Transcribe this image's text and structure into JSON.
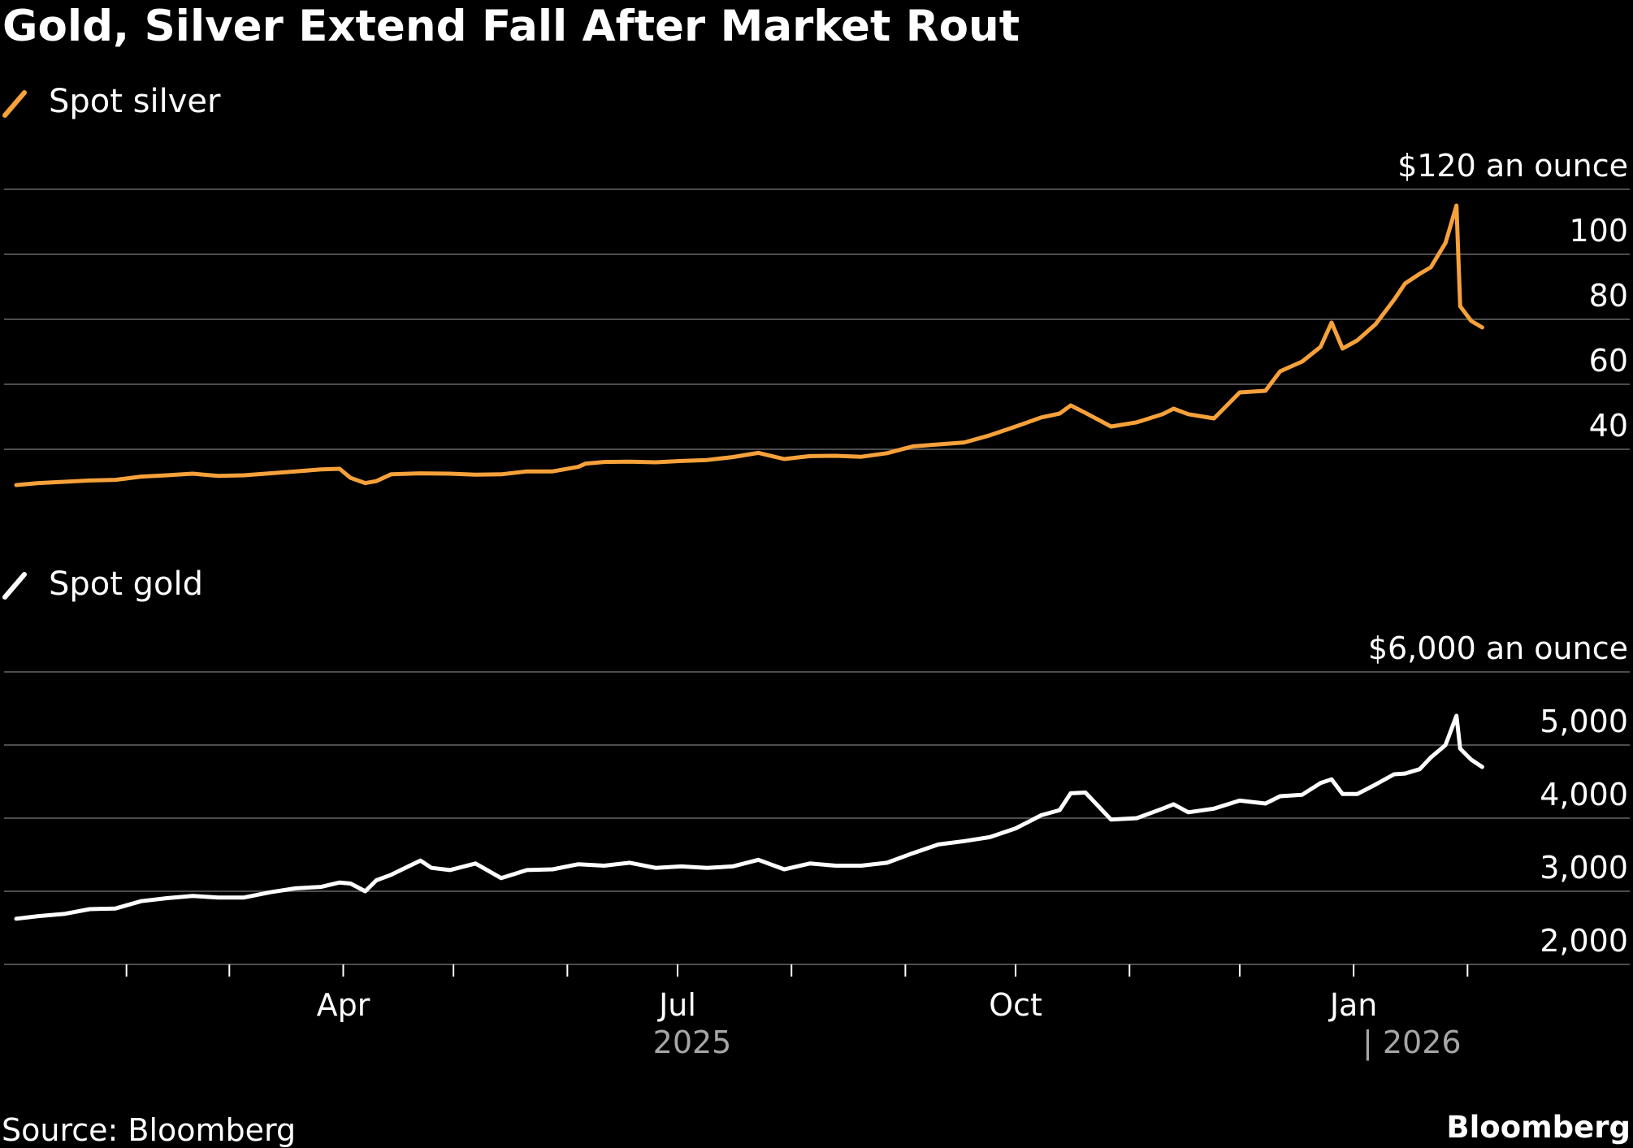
{
  "title": "Gold, Silver Extend Fall After Market Rout",
  "source": "Source: Bloomberg",
  "brand": "Bloomberg",
  "colors": {
    "background": "#000000",
    "silver_line": "#f7a13a",
    "gold_line": "#ffffff",
    "grid": "#4d4d4d",
    "muted_text": "#a6a6a6"
  },
  "x_axis": {
    "tick_labels": [
      "Apr",
      "Jul",
      "Oct",
      "Jan"
    ],
    "year_labels": [
      "2025",
      "| 2026"
    ]
  },
  "chart_data": [
    {
      "type": "line",
      "legend": "Spot silver",
      "y_unit_label": "$120 an ounce",
      "y_ticks": [
        "$120 an ounce",
        "100",
        "80",
        "60",
        "40"
      ],
      "y_tick_values": [
        120,
        100,
        80,
        60,
        40
      ],
      "ylim": [
        20,
        120
      ],
      "xlim": [
        "2025-01-02",
        "2026-02-10"
      ],
      "grid": true,
      "series": [
        {
          "x": [
            "2025-01-02",
            "2025-01-08",
            "2025-01-15",
            "2025-01-22",
            "2025-01-29",
            "2025-02-05",
            "2025-02-12",
            "2025-02-19",
            "2025-02-26",
            "2025-03-05",
            "2025-03-12",
            "2025-03-19",
            "2025-03-26",
            "2025-03-31",
            "2025-04-03",
            "2025-04-07",
            "2025-04-10",
            "2025-04-14",
            "2025-04-22",
            "2025-04-30",
            "2025-05-07",
            "2025-05-14",
            "2025-05-21",
            "2025-05-28",
            "2025-06-04",
            "2025-06-06",
            "2025-06-11",
            "2025-06-18",
            "2025-06-25",
            "2025-07-02",
            "2025-07-09",
            "2025-07-16",
            "2025-07-23",
            "2025-07-30",
            "2025-08-06",
            "2025-08-13",
            "2025-08-20",
            "2025-08-27",
            "2025-09-03",
            "2025-09-10",
            "2025-09-17",
            "2025-09-24",
            "2025-10-01",
            "2025-10-08",
            "2025-10-13",
            "2025-10-16",
            "2025-10-20",
            "2025-10-27",
            "2025-11-03",
            "2025-11-10",
            "2025-11-13",
            "2025-11-17",
            "2025-11-24",
            "2025-12-01",
            "2025-12-08",
            "2025-12-12",
            "2025-12-18",
            "2025-12-23",
            "2025-12-26",
            "2025-12-29",
            "2026-01-02",
            "2026-01-07",
            "2026-01-12",
            "2026-01-15",
            "2026-01-19",
            "2026-01-22",
            "2026-01-26",
            "2026-01-29",
            "2026-01-30",
            "2026-02-02",
            "2026-02-05"
          ],
          "values": [
            29.0,
            29.6,
            30.0,
            30.4,
            30.6,
            31.6,
            32.0,
            32.5,
            31.8,
            32.0,
            32.6,
            33.2,
            33.8,
            34.0,
            31.2,
            29.6,
            30.2,
            32.3,
            32.6,
            32.5,
            32.2,
            32.3,
            33.2,
            33.2,
            34.6,
            35.6,
            36.1,
            36.2,
            36.0,
            36.4,
            36.7,
            37.6,
            38.9,
            37.0,
            37.9,
            38.0,
            37.7,
            38.8,
            40.9,
            41.5,
            42.1,
            44.3,
            47.0,
            49.8,
            51.0,
            53.5,
            51.2,
            47.0,
            48.3,
            50.8,
            52.5,
            50.8,
            49.5,
            57.5,
            58.0,
            64.0,
            67.0,
            71.5,
            79.0,
            71.0,
            73.5,
            78.5,
            86.0,
            91.0,
            94.0,
            96.0,
            103.5,
            115.0,
            84.0,
            79.5,
            77.5
          ]
        }
      ]
    },
    {
      "type": "line",
      "legend": "Spot gold",
      "y_unit_label": "$6,000 an ounce",
      "y_ticks": [
        "$6,000 an ounce",
        "5,000",
        "4,000",
        "3,000",
        "2,000"
      ],
      "y_tick_values": [
        6000,
        5000,
        4000,
        3000,
        2000
      ],
      "ylim": [
        2000,
        6000
      ],
      "xlim": [
        "2025-01-02",
        "2026-02-10"
      ],
      "grid": true,
      "series": [
        {
          "x": [
            "2025-01-02",
            "2025-01-08",
            "2025-01-15",
            "2025-01-22",
            "2025-01-29",
            "2025-02-05",
            "2025-02-12",
            "2025-02-19",
            "2025-02-26",
            "2025-03-05",
            "2025-03-12",
            "2025-03-19",
            "2025-03-26",
            "2025-03-31",
            "2025-04-03",
            "2025-04-07",
            "2025-04-10",
            "2025-04-14",
            "2025-04-22",
            "2025-04-25",
            "2025-04-30",
            "2025-05-07",
            "2025-05-14",
            "2025-05-21",
            "2025-05-28",
            "2025-06-04",
            "2025-06-11",
            "2025-06-18",
            "2025-06-25",
            "2025-07-02",
            "2025-07-09",
            "2025-07-16",
            "2025-07-23",
            "2025-07-30",
            "2025-08-06",
            "2025-08-13",
            "2025-08-20",
            "2025-08-27",
            "2025-09-03",
            "2025-09-10",
            "2025-09-17",
            "2025-09-24",
            "2025-10-01",
            "2025-10-08",
            "2025-10-13",
            "2025-10-16",
            "2025-10-20",
            "2025-10-27",
            "2025-11-03",
            "2025-11-10",
            "2025-11-13",
            "2025-11-17",
            "2025-11-24",
            "2025-12-01",
            "2025-12-08",
            "2025-12-12",
            "2025-12-18",
            "2025-12-23",
            "2025-12-26",
            "2025-12-29",
            "2026-01-02",
            "2026-01-07",
            "2026-01-12",
            "2026-01-15",
            "2026-01-19",
            "2026-01-22",
            "2026-01-26",
            "2026-01-29",
            "2026-01-30",
            "2026-02-02",
            "2026-02-05"
          ],
          "values": [
            2625,
            2660,
            2690,
            2755,
            2765,
            2865,
            2905,
            2935,
            2915,
            2915,
            2985,
            3040,
            3060,
            3120,
            3105,
            3000,
            3150,
            3225,
            3420,
            3320,
            3290,
            3380,
            3180,
            3290,
            3300,
            3370,
            3350,
            3390,
            3320,
            3340,
            3320,
            3340,
            3430,
            3300,
            3380,
            3350,
            3350,
            3390,
            3520,
            3640,
            3685,
            3740,
            3860,
            4040,
            4110,
            4340,
            4350,
            3980,
            4000,
            4130,
            4190,
            4080,
            4130,
            4240,
            4200,
            4300,
            4320,
            4480,
            4530,
            4330,
            4330,
            4460,
            4600,
            4610,
            4670,
            4830,
            5000,
            5400,
            4950,
            4800,
            4700
          ]
        }
      ]
    }
  ]
}
